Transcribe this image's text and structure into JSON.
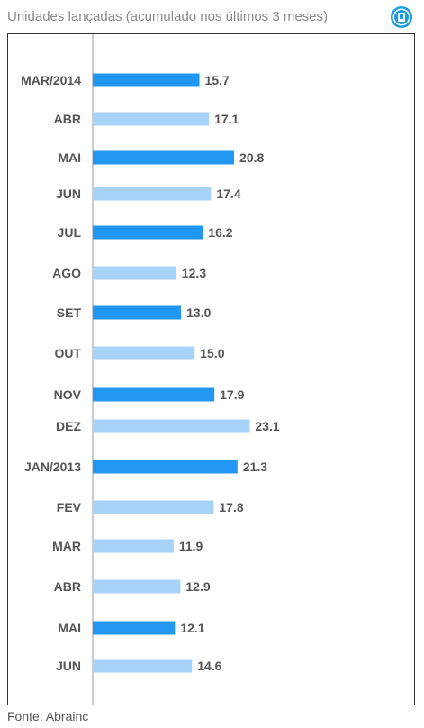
{
  "title": "Unidades lançadas (acumulado nos últimos 3 meses)",
  "source": "Fonte: Abrainc",
  "colors": {
    "dark": "#2196f3",
    "light": "#a6d3f7",
    "axis": "#999999",
    "frame": "#333333"
  },
  "chart_data": {
    "type": "bar",
    "orientation": "horizontal",
    "categories": [
      "MAR/2014",
      "ABR",
      "MAI",
      "JUN",
      "JUL",
      "AGO",
      "SET",
      "OUT",
      "NOV",
      "DEZ",
      "JAN/2013",
      "FEV",
      "MAR",
      "ABR",
      "MAI",
      "JUN"
    ],
    "values": [
      15.7,
      17.1,
      20.8,
      17.4,
      16.2,
      12.3,
      13.0,
      15.0,
      17.9,
      23.1,
      21.3,
      17.8,
      11.9,
      12.9,
      12.1,
      14.6
    ],
    "value_labels": [
      "15.7",
      "17.1",
      "20.8",
      "17.4",
      "16.2",
      "12.3",
      "13.0",
      "15.0",
      "17.9",
      "23.1",
      "21.3",
      "17.8",
      "11.9",
      "12.9",
      "12.1",
      "14.6"
    ],
    "bar_shades": [
      "dark",
      "light",
      "dark",
      "light",
      "dark",
      "light",
      "dark",
      "light",
      "dark",
      "light",
      "dark",
      "light",
      "light",
      "light",
      "dark",
      "light"
    ],
    "title": "Unidades lançadas (acumulado nos últimos 3 meses)",
    "xlabel": "",
    "ylabel": "",
    "grid": false,
    "legend": "none"
  }
}
